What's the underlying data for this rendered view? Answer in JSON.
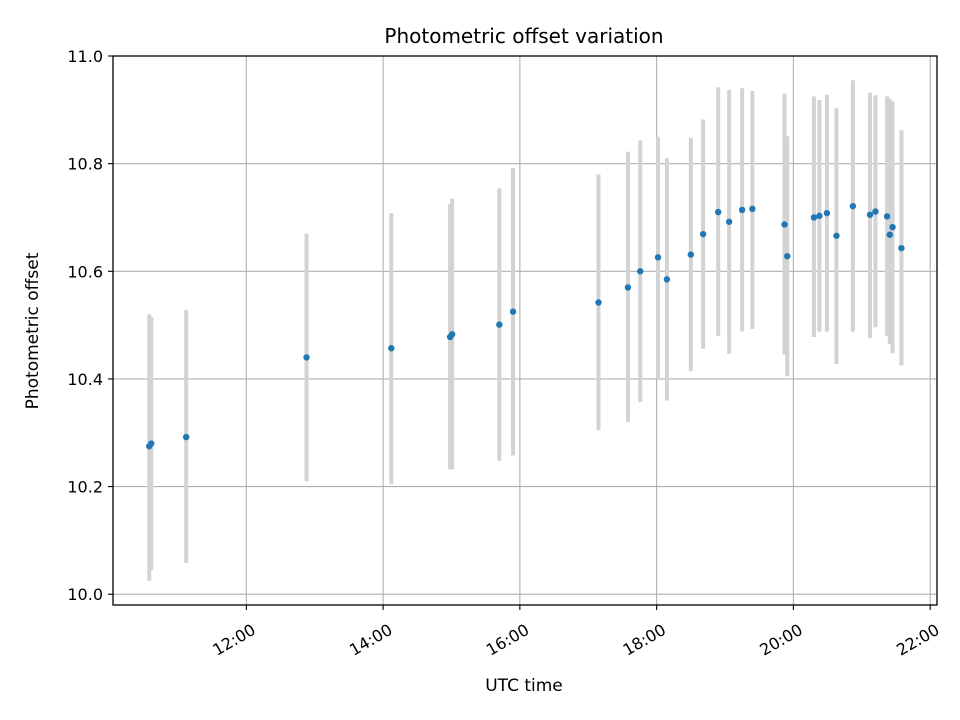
{
  "chart_data": {
    "type": "scatter",
    "title": "Photometric offset variation",
    "xlabel": "UTC time",
    "ylabel": "Photometric offset",
    "x_unit": "hours UTC",
    "xlim": [
      10.05,
      22.1
    ],
    "ylim": [
      9.98,
      11.0
    ],
    "x_ticks": [
      {
        "value": 12,
        "label": "12:00"
      },
      {
        "value": 14,
        "label": "14:00"
      },
      {
        "value": 16,
        "label": "16:00"
      },
      {
        "value": 18,
        "label": "18:00"
      },
      {
        "value": 20,
        "label": "20:00"
      },
      {
        "value": 22,
        "label": "22:00"
      }
    ],
    "y_ticks": [
      {
        "value": 10.0,
        "label": "10.0"
      },
      {
        "value": 10.2,
        "label": "10.2"
      },
      {
        "value": 10.4,
        "label": "10.4"
      },
      {
        "value": 10.6,
        "label": "10.6"
      },
      {
        "value": 10.8,
        "label": "10.8"
      },
      {
        "value": 11.0,
        "label": "11.0"
      }
    ],
    "grid": true,
    "marker_color": "#1f77b4",
    "errorbar_color": "#d3d3d3",
    "points": [
      {
        "x": 10.58,
        "y": 10.275,
        "lo": 10.025,
        "hi": 10.52
      },
      {
        "x": 10.61,
        "y": 10.28,
        "lo": 10.045,
        "hi": 10.515
      },
      {
        "x": 11.12,
        "y": 10.292,
        "lo": 10.058,
        "hi": 10.528
      },
      {
        "x": 12.88,
        "y": 10.44,
        "lo": 10.21,
        "hi": 10.67
      },
      {
        "x": 14.12,
        "y": 10.457,
        "lo": 10.205,
        "hi": 10.708
      },
      {
        "x": 14.98,
        "y": 10.478,
        "lo": 10.232,
        "hi": 10.725
      },
      {
        "x": 15.01,
        "y": 10.483,
        "lo": 10.232,
        "hi": 10.735
      },
      {
        "x": 15.7,
        "y": 10.501,
        "lo": 10.248,
        "hi": 10.754
      },
      {
        "x": 15.9,
        "y": 10.525,
        "lo": 10.258,
        "hi": 10.792
      },
      {
        "x": 17.15,
        "y": 10.542,
        "lo": 10.305,
        "hi": 10.78
      },
      {
        "x": 17.58,
        "y": 10.57,
        "lo": 10.32,
        "hi": 10.822
      },
      {
        "x": 17.76,
        "y": 10.6,
        "lo": 10.357,
        "hi": 10.843
      },
      {
        "x": 18.02,
        "y": 10.626,
        "lo": 10.4,
        "hi": 10.85
      },
      {
        "x": 18.15,
        "y": 10.585,
        "lo": 10.36,
        "hi": 10.81
      },
      {
        "x": 18.5,
        "y": 10.631,
        "lo": 10.414,
        "hi": 10.848
      },
      {
        "x": 18.68,
        "y": 10.669,
        "lo": 10.456,
        "hi": 10.882
      },
      {
        "x": 18.9,
        "y": 10.71,
        "lo": 10.48,
        "hi": 10.942
      },
      {
        "x": 19.06,
        "y": 10.692,
        "lo": 10.447,
        "hi": 10.937
      },
      {
        "x": 19.25,
        "y": 10.714,
        "lo": 10.488,
        "hi": 10.94
      },
      {
        "x": 19.4,
        "y": 10.716,
        "lo": 10.493,
        "hi": 10.935
      },
      {
        "x": 19.87,
        "y": 10.687,
        "lo": 10.445,
        "hi": 10.93
      },
      {
        "x": 19.91,
        "y": 10.628,
        "lo": 10.405,
        "hi": 10.851
      },
      {
        "x": 20.3,
        "y": 10.7,
        "lo": 10.478,
        "hi": 10.925
      },
      {
        "x": 20.38,
        "y": 10.703,
        "lo": 10.488,
        "hi": 10.918
      },
      {
        "x": 20.49,
        "y": 10.708,
        "lo": 10.488,
        "hi": 10.928
      },
      {
        "x": 20.63,
        "y": 10.666,
        "lo": 10.428,
        "hi": 10.903
      },
      {
        "x": 20.87,
        "y": 10.721,
        "lo": 10.488,
        "hi": 10.955
      },
      {
        "x": 21.12,
        "y": 10.705,
        "lo": 10.476,
        "hi": 10.932
      },
      {
        "x": 21.2,
        "y": 10.711,
        "lo": 10.496,
        "hi": 10.927
      },
      {
        "x": 21.37,
        "y": 10.702,
        "lo": 10.48,
        "hi": 10.925
      },
      {
        "x": 21.41,
        "y": 10.668,
        "lo": 10.465,
        "hi": 10.92
      },
      {
        "x": 21.45,
        "y": 10.682,
        "lo": 10.448,
        "hi": 10.915
      },
      {
        "x": 21.58,
        "y": 10.643,
        "lo": 10.425,
        "hi": 10.862
      }
    ]
  }
}
